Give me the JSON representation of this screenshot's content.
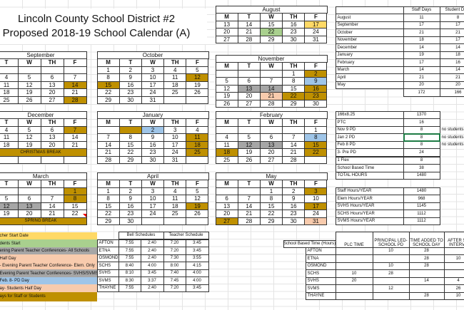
{
  "title": {
    "line1": "Lincoln County School District #2",
    "line2": "Proposed 2018-19 School Calendar (A)"
  },
  "colors": {
    "gold": "#bf9000",
    "yellow": "#ffd966",
    "green": "#a9d08e",
    "gray": "#a6a6a6",
    "blue": "#9fc5e8",
    "peach": "#f8cbad",
    "selection": "#1e7b45"
  },
  "months": [
    {
      "name": "August",
      "days": [
        "M",
        "T",
        "W",
        "TH",
        "F"
      ],
      "rows": [
        [
          "13",
          "14",
          "15",
          "16",
          [
            "17",
            "yellow"
          ]
        ],
        [
          "20",
          "21",
          [
            "22",
            "green"
          ],
          "23",
          "24"
        ],
        [
          "27",
          "28",
          "29",
          "30",
          "31"
        ]
      ]
    },
    {
      "name": "September",
      "days": [
        "T",
        "W",
        "TH",
        "F"
      ],
      "rows": [
        [
          "",
          "",
          "",
          ""
        ],
        [
          "4",
          "5",
          "6",
          "7"
        ],
        [
          "11",
          "12",
          "13",
          [
            "14",
            "gold"
          ]
        ],
        [
          "18",
          "19",
          "20",
          "21"
        ],
        [
          "25",
          "26",
          "27",
          [
            "28",
            "gold"
          ]
        ]
      ]
    },
    {
      "name": "October",
      "days": [
        "M",
        "T",
        "W",
        "TH",
        "F"
      ],
      "rows": [
        [
          "1",
          "2",
          "3",
          "4",
          "5"
        ],
        [
          "8",
          "9",
          "10",
          "11",
          [
            "12",
            "gold"
          ]
        ],
        [
          [
            "15",
            "gold"
          ],
          "16",
          "17",
          "18",
          "19"
        ],
        [
          "22",
          "23",
          "24",
          "25",
          "26"
        ],
        [
          "29",
          "30",
          "31",
          "",
          ""
        ]
      ]
    },
    {
      "name": "November",
      "days": [
        "M",
        "T",
        "W",
        "TH",
        "F"
      ],
      "rows": [
        [
          "",
          "",
          "",
          "1",
          [
            "2",
            "gold"
          ]
        ],
        [
          "5",
          "6",
          "7",
          "8",
          [
            "9",
            "blue"
          ]
        ],
        [
          "12",
          [
            "13",
            "gray"
          ],
          [
            "14",
            "gray"
          ],
          "15",
          [
            "16",
            "gold"
          ]
        ],
        [
          "19",
          "20",
          [
            "21",
            "peach"
          ],
          [
            "22",
            "gold"
          ],
          [
            "23",
            "gold"
          ]
        ],
        [
          "26",
          "27",
          "28",
          "29",
          "30"
        ]
      ]
    },
    {
      "name": "December",
      "days": [
        "T",
        "W",
        "TH",
        "F"
      ],
      "rows": [
        [
          "4",
          "5",
          "6",
          [
            "7",
            "gold"
          ]
        ],
        [
          "11",
          "12",
          "13",
          "14"
        ],
        [
          "18",
          "19",
          "20",
          "21"
        ],
        {
          "break": "CHRISTMAS BREAK"
        },
        [
          "",
          "",
          "",
          ""
        ]
      ]
    },
    {
      "name": "January",
      "days": [
        "M",
        "T",
        "W",
        "TH",
        "F"
      ],
      "rows": [
        [
          "",
          [
            "",
            "gold"
          ],
          [
            "2",
            "blue"
          ],
          "3",
          "4"
        ],
        [
          "7",
          "8",
          "9",
          "10",
          [
            "11",
            "gold"
          ]
        ],
        [
          "14",
          "15",
          "16",
          "17",
          [
            "18",
            "gold"
          ]
        ],
        [
          "21",
          "22",
          "23",
          "24",
          [
            "25",
            "gold"
          ]
        ],
        [
          "28",
          "29",
          "30",
          "31",
          ""
        ]
      ]
    },
    {
      "name": "February",
      "days": [
        "M",
        "T",
        "W",
        "TH",
        "F"
      ],
      "rows": [
        [
          "",
          "",
          "",
          "",
          "1"
        ],
        [
          "4",
          "5",
          "6",
          "7",
          [
            "8",
            "blue"
          ]
        ],
        [
          "11",
          [
            "12",
            "gray"
          ],
          [
            "13",
            "gray"
          ],
          "14",
          [
            "15",
            "gold"
          ]
        ],
        [
          [
            "18",
            "gold"
          ],
          "19",
          "20",
          "21",
          [
            "22",
            "gold"
          ]
        ],
        [
          "25",
          "26",
          "27",
          "28",
          ""
        ]
      ]
    },
    {
      "name": "March",
      "days": [
        "T",
        "W",
        "TH",
        "F"
      ],
      "rows": [
        [
          "",
          "",
          "",
          [
            "1",
            "gold"
          ]
        ],
        [
          "5",
          "6",
          "7",
          [
            "8",
            "gold"
          ]
        ],
        [
          [
            "12",
            "gray"
          ],
          [
            "13",
            "gray"
          ],
          "14",
          "15"
        ],
        [
          "19",
          "20",
          "21",
          "22"
        ],
        {
          "break": "SPRING BREAK"
        }
      ]
    },
    {
      "name": "April",
      "days": [
        "M",
        "T",
        "W",
        "TH",
        "F"
      ],
      "rows": [
        [
          "1",
          "2",
          "3",
          "4",
          "5"
        ],
        [
          "8",
          "9",
          "10",
          "11",
          "12"
        ],
        [
          "15",
          "16",
          "17",
          "18",
          [
            "19",
            "gold"
          ]
        ],
        [
          "22",
          "23",
          "24",
          "25",
          "26"
        ],
        [
          "29",
          "30",
          "",
          "",
          ""
        ]
      ]
    },
    {
      "name": "May",
      "days": [
        "M",
        "T",
        "W",
        "TH",
        "F"
      ],
      "rows": [
        [
          "",
          "",
          "1",
          "2",
          [
            "3",
            "gold"
          ]
        ],
        [
          "6",
          "7",
          "8",
          "9",
          "10"
        ],
        [
          "13",
          "14",
          "15",
          "16",
          [
            "17",
            "gold"
          ]
        ],
        [
          "20",
          "21",
          "22",
          "23",
          "24"
        ],
        [
          [
            "27",
            "gold"
          ],
          "28",
          "29",
          "30",
          [
            "31",
            "peach"
          ]
        ]
      ]
    }
  ],
  "days_table": {
    "headers": [
      "",
      "Staff Days",
      "Student Days"
    ],
    "rows": [
      [
        "August",
        "11",
        "8"
      ],
      [
        "September",
        "17",
        "17"
      ],
      [
        "October",
        "21",
        "21"
      ],
      [
        "November",
        "18",
        "17"
      ],
      [
        "December",
        "14",
        "14"
      ],
      [
        "January",
        "19",
        "18"
      ],
      [
        "February",
        "17",
        "16"
      ],
      [
        "March",
        "14",
        "14"
      ],
      [
        "April",
        "21",
        "21"
      ],
      [
        "May",
        "20",
        "20"
      ]
    ],
    "totals": [
      "",
      "172",
      "166"
    ]
  },
  "hours_table": {
    "rows": [
      [
        "166x8.25",
        "1370",
        ""
      ],
      [
        "PTC",
        "16",
        ""
      ],
      [
        "Nov 9 PD",
        "8",
        "no students"
      ],
      [
        "Jan 2 PD",
        "8",
        "no students"
      ],
      [
        "Feb 8 PD",
        "8",
        "no students"
      ],
      [
        "3- Pre PD",
        "24",
        ""
      ],
      [
        "1 Flex",
        "8",
        ""
      ],
      [
        "School Based Time",
        "38",
        ""
      ],
      [
        "TOTAL HOURS",
        "1480",
        ""
      ]
    ]
  },
  "year_hours_table": {
    "rows": [
      [
        "Staff Hours/YEAR",
        "1480"
      ],
      [
        "Elem Hours/YEAR",
        "968"
      ],
      [
        "SVHS Hours/YEAR",
        "1145"
      ],
      [
        "SCHS Hours/YEAR",
        "1112"
      ],
      [
        "SVMS Hours/YEAR",
        "1112"
      ]
    ]
  },
  "legend": [
    {
      "text": "cher Start Date",
      "color": "yellow"
    },
    {
      "text": "dents Start",
      "color": "green"
    },
    {
      "text": "ening Parent Teacher Conferences- All Schools",
      "color": "gray"
    },
    {
      "text": "Half Day",
      "color": "peach"
    },
    {
      "text": "- Evening Parent Teacher Conference- Elem. Only",
      "color": "peach"
    },
    {
      "text": "Evening Parent Teacher Conferences- SVHS/SVMS",
      "color": "gray"
    },
    {
      "text": "Feb. 8- PD Day",
      "color": "blue"
    },
    {
      "text": "ay- Students Half Day",
      "color": "peach"
    },
    {
      "text": "ays for Staff or Students",
      "color": "gold"
    }
  ],
  "bell_table": {
    "headers": [
      "Bell Schedules",
      "Teacher Schedule"
    ],
    "rows": [
      [
        "AFTON",
        "7:55",
        "2:40",
        "7:20",
        "3:45"
      ],
      [
        "ETNA",
        "7:55",
        "2:40",
        "7:20",
        "3:45"
      ],
      [
        "OSMOND",
        "7:55",
        "2:40",
        "7:30",
        "3:55"
      ],
      [
        "SCHS",
        "8:40",
        "4:00",
        "8:00",
        "4:15"
      ],
      [
        "SVHS",
        "8:10",
        "3:45",
        "7:40",
        "4:00"
      ],
      [
        "SVMS",
        "8:30",
        "3:37",
        "7:45",
        "4:00"
      ],
      [
        "THAYNE",
        "7:55",
        "2:40",
        "7:20",
        "3:45"
      ]
    ]
  },
  "school_time_table": {
    "label": "School Based Time (Hours)",
    "headers": [
      [
        "PLC TIME"
      ],
      [
        "PRINCIPAL LED-",
        "SCHOOL PD"
      ],
      [
        "TIME ADDED TO",
        "SCHOOL DAY"
      ],
      [
        "AFTER SC",
        "INTERVE"
      ]
    ],
    "rows": [
      [
        "AFTON",
        "",
        "10",
        "28",
        ""
      ],
      [
        "ETNA",
        "",
        "",
        "28",
        "10"
      ],
      [
        "OSMOND",
        "",
        "10",
        "28",
        ""
      ],
      [
        "SCHS",
        "10",
        "28",
        "",
        ""
      ],
      [
        "SVHS",
        "20",
        "",
        "14",
        "4"
      ],
      [
        "SVMS",
        "",
        "12",
        "",
        "26"
      ],
      [
        "THAYNE",
        "",
        "",
        "28",
        "10"
      ]
    ]
  }
}
